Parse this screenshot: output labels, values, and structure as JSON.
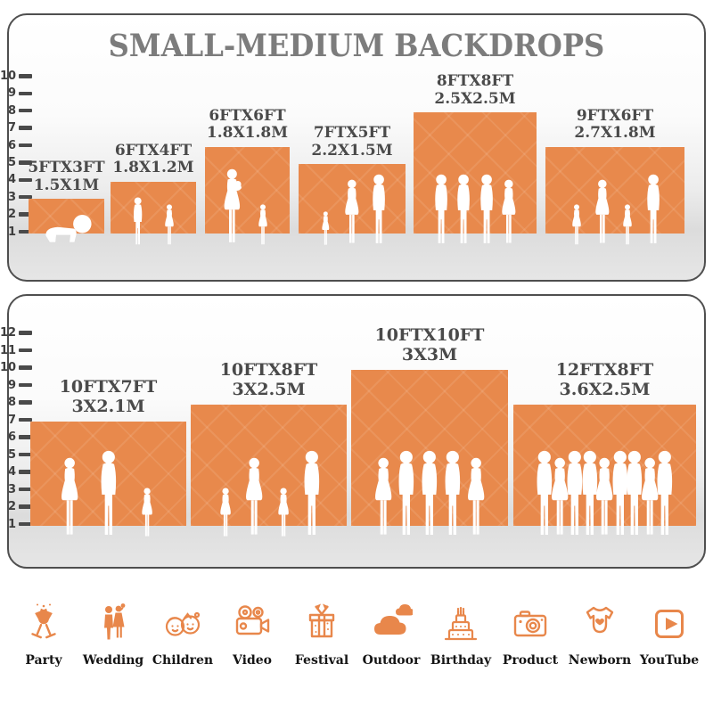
{
  "title": "SMALL-MEDIUM BACKDROPS",
  "colors": {
    "backdrop_orange": "#E8894C",
    "icon_orange": "#E8874B",
    "title_gray": "#7C7C7C",
    "label_gray": "#4A4A4A",
    "tick_gray": "#3E3E3E",
    "panel_border": "#4F4F4F",
    "silhouette_white": "#FFFFFF"
  },
  "panels": [
    {
      "name": "small-medium-panel",
      "tick_labels": [
        1,
        2,
        3,
        4,
        5,
        6,
        7,
        8,
        9,
        10
      ],
      "backdrops": [
        {
          "size_ft": "5FTX3FT",
          "size_m": "1.5X1M",
          "width_ft": 5,
          "height_ft": 3,
          "people": [
            "baby-crawl"
          ]
        },
        {
          "size_ft": "6FTX4FT",
          "size_m": "1.8X1.2M",
          "width_ft": 6,
          "height_ft": 4,
          "people": [
            "boy",
            "girl"
          ]
        },
        {
          "size_ft": "6FTX6FT",
          "size_m": "1.8X1.8M",
          "width_ft": 6,
          "height_ft": 6,
          "people": [
            "woman-baby",
            "girl"
          ]
        },
        {
          "size_ft": "7FTX5FT",
          "size_m": "2.2X1.5M",
          "width_ft": 7,
          "height_ft": 5,
          "people": [
            "toddler",
            "woman",
            "man"
          ]
        },
        {
          "size_ft": "8FTX8FT",
          "size_m": "2.5X2.5M",
          "width_ft": 8,
          "height_ft": 8,
          "people": [
            "man",
            "man",
            "man",
            "woman"
          ]
        },
        {
          "size_ft": "9FTX6FT",
          "size_m": "2.7X1.8M",
          "width_ft": 9,
          "height_ft": 6,
          "people": [
            "girl",
            "woman",
            "girl",
            "man"
          ]
        }
      ]
    },
    {
      "name": "large-panel",
      "tick_labels": [
        1,
        2,
        3,
        4,
        5,
        6,
        7,
        8,
        9,
        10,
        11,
        12
      ],
      "backdrops": [
        {
          "size_ft": "10FTX7FT",
          "size_m": "3X2.1M",
          "width_ft": 10,
          "height_ft": 7,
          "people": [
            "woman",
            "man",
            "girl"
          ]
        },
        {
          "size_ft": "10FTX8FT",
          "size_m": "3X2.5M",
          "width_ft": 10,
          "height_ft": 8,
          "people": [
            "girl",
            "woman",
            "girl",
            "man"
          ]
        },
        {
          "size_ft": "10FTX10FT",
          "size_m": "3X3M",
          "width_ft": 10,
          "height_ft": 10,
          "people": [
            "woman",
            "man",
            "man",
            "man",
            "woman"
          ]
        },
        {
          "size_ft": "12FTX8FT",
          "size_m": "3.6X2.5M",
          "width_ft": 12,
          "height_ft": 8,
          "people": [
            "man",
            "woman",
            "man",
            "man",
            "woman",
            "man",
            "man",
            "woman",
            "man"
          ]
        }
      ]
    }
  ],
  "categories": [
    {
      "label": "Party",
      "icon": "party-icon"
    },
    {
      "label": "Wedding",
      "icon": "wedding-icon"
    },
    {
      "label": "Children",
      "icon": "children-icon"
    },
    {
      "label": "Video",
      "icon": "video-icon"
    },
    {
      "label": "Festival",
      "icon": "festival-icon"
    },
    {
      "label": "Outdoor",
      "icon": "outdoor-icon"
    },
    {
      "label": "Birthday",
      "icon": "birthday-icon"
    },
    {
      "label": "Product",
      "icon": "product-icon"
    },
    {
      "label": "Newborn",
      "icon": "newborn-icon"
    },
    {
      "label": "YouTube",
      "icon": "youtube-icon"
    }
  ]
}
